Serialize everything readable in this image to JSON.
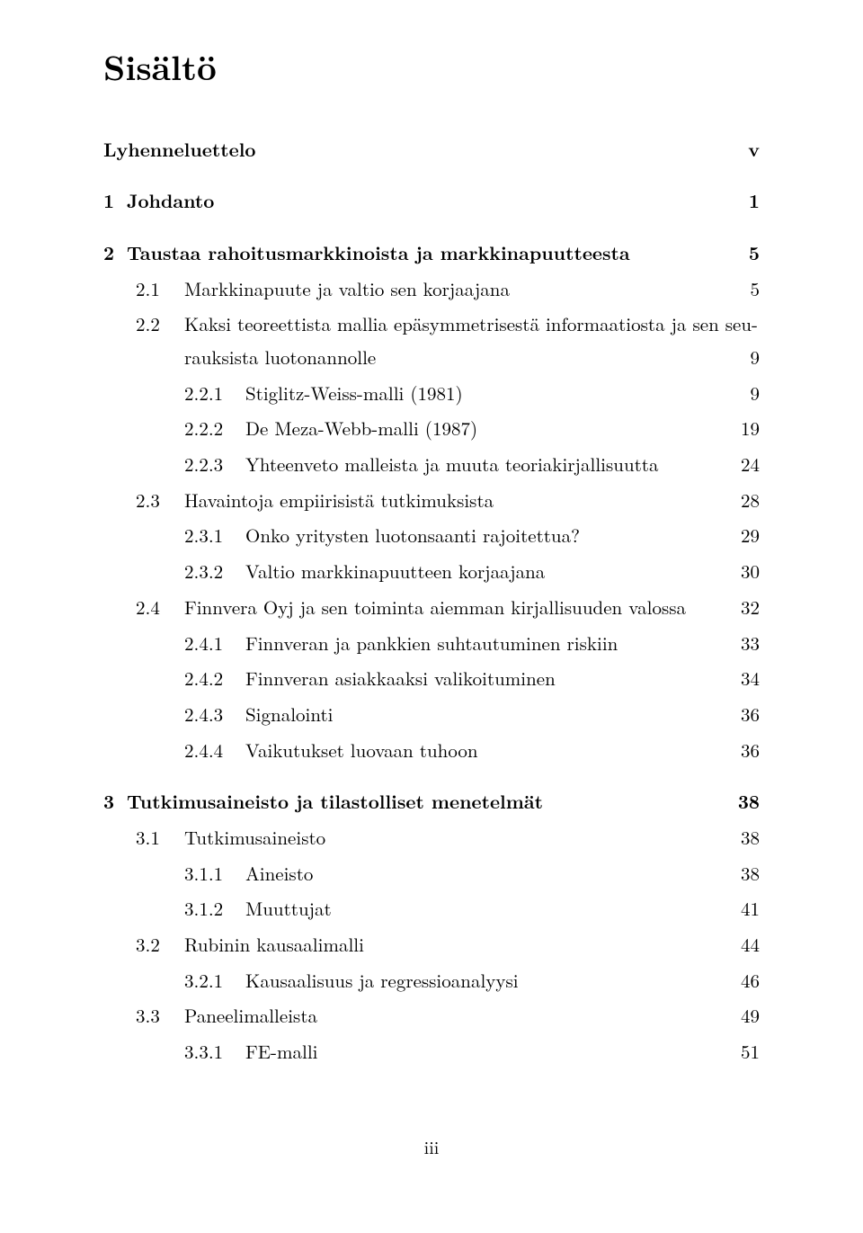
{
  "title": "Sisältö",
  "footer_page": "iii",
  "entries": [
    {
      "num": "",
      "label": "Lyhenneluettelo",
      "page": "v",
      "level": 0,
      "bold": true,
      "dots": false,
      "gap": "lg"
    },
    {
      "num": "1",
      "label": "Johdanto",
      "page": "1",
      "level": 0,
      "bold": true,
      "dots": false,
      "gap": "lg"
    },
    {
      "num": "2",
      "label": "Taustaa rahoitusmarkkinoista ja markkinapuutteesta",
      "page": "5",
      "level": 0,
      "bold": true,
      "dots": false,
      "gap": "lg"
    },
    {
      "num": "2.1",
      "label": "Markkinapuute ja valtio sen korjaajana",
      "page": "5",
      "level": 1,
      "bold": false,
      "dots": true,
      "gap": "sm"
    },
    {
      "num": "2.2",
      "label_line1": "Kaksi teoreettista mallia epäsymmetrisestä informaatiosta ja sen seu-",
      "label_line2": "rauksista luotonannolle",
      "page": "9",
      "level": 1,
      "bold": false,
      "dots": true,
      "gap": "sm",
      "twoLine": true
    },
    {
      "num": "2.2.1",
      "label": "Stiglitz-Weiss-malli (1981)",
      "page": "9",
      "level": 2,
      "bold": false,
      "dots": true,
      "gap": "sm"
    },
    {
      "num": "2.2.2",
      "label": "De Meza-Webb-malli (1987)",
      "page": "19",
      "level": 2,
      "bold": false,
      "dots": true,
      "gap": "sm"
    },
    {
      "num": "2.2.3",
      "label": "Yhteenveto malleista ja muuta teoriakirjallisuutta",
      "page": "24",
      "level": 2,
      "bold": false,
      "dots": true,
      "gap": "sm"
    },
    {
      "num": "2.3",
      "label": "Havaintoja empiirisistä tutkimuksista",
      "page": "28",
      "level": 1,
      "bold": false,
      "dots": true,
      "gap": "sm"
    },
    {
      "num": "2.3.1",
      "label": "Onko yritysten luotonsaanti rajoitettua?",
      "page": "29",
      "level": 2,
      "bold": false,
      "dots": true,
      "gap": "sm"
    },
    {
      "num": "2.3.2",
      "label": "Valtio markkinapuutteen korjaajana",
      "page": "30",
      "level": 2,
      "bold": false,
      "dots": true,
      "gap": "sm"
    },
    {
      "num": "2.4",
      "label": "Finnvera Oyj ja sen toiminta aiemman kirjallisuuden valossa",
      "page": "32",
      "level": 1,
      "bold": false,
      "dots": true,
      "gap": "sm"
    },
    {
      "num": "2.4.1",
      "label": "Finnveran ja pankkien suhtautuminen riskiin",
      "page": "33",
      "level": 2,
      "bold": false,
      "dots": true,
      "gap": "sm"
    },
    {
      "num": "2.4.2",
      "label": "Finnveran asiakkaaksi valikoituminen",
      "page": "34",
      "level": 2,
      "bold": false,
      "dots": true,
      "gap": "sm"
    },
    {
      "num": "2.4.3",
      "label": "Signalointi",
      "page": "36",
      "level": 2,
      "bold": false,
      "dots": true,
      "gap": "sm"
    },
    {
      "num": "2.4.4",
      "label": "Vaikutukset luovaan tuhoon",
      "page": "36",
      "level": 2,
      "bold": false,
      "dots": true,
      "gap": "sm"
    },
    {
      "num": "3",
      "label": "Tutkimusaineisto ja tilastolliset menetelmät",
      "page": "38",
      "level": 0,
      "bold": true,
      "dots": false,
      "gap": "lg"
    },
    {
      "num": "3.1",
      "label": "Tutkimusaineisto",
      "page": "38",
      "level": 1,
      "bold": false,
      "dots": true,
      "gap": "sm"
    },
    {
      "num": "3.1.1",
      "label": "Aineisto",
      "page": "38",
      "level": 2,
      "bold": false,
      "dots": true,
      "gap": "sm"
    },
    {
      "num": "3.1.2",
      "label": "Muuttujat",
      "page": "41",
      "level": 2,
      "bold": false,
      "dots": true,
      "gap": "sm"
    },
    {
      "num": "3.2",
      "label": "Rubinin kausaalimalli",
      "page": "44",
      "level": 1,
      "bold": false,
      "dots": true,
      "gap": "sm"
    },
    {
      "num": "3.2.1",
      "label": "Kausaalisuus ja regressioanalyysi",
      "page": "46",
      "level": 2,
      "bold": false,
      "dots": true,
      "gap": "sm"
    },
    {
      "num": "3.3",
      "label": "Paneelimalleista",
      "page": "49",
      "level": 1,
      "bold": false,
      "dots": true,
      "gap": "sm"
    },
    {
      "num": "3.3.1",
      "label": "FE-malli",
      "page": "51",
      "level": 2,
      "bold": false,
      "dots": true,
      "gap": "sm"
    }
  ]
}
